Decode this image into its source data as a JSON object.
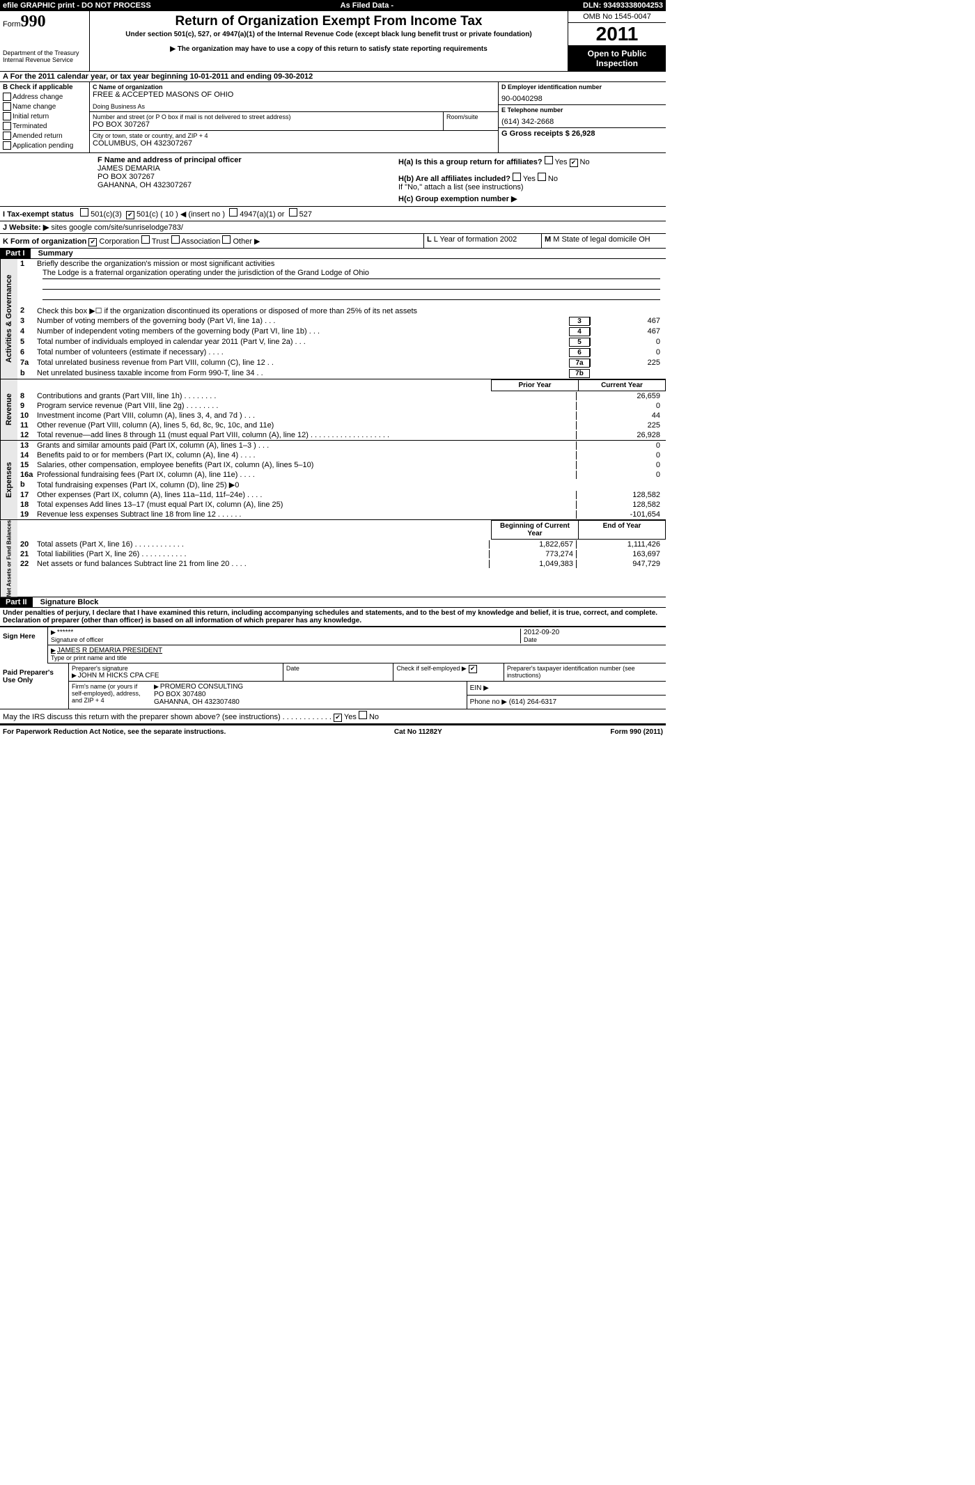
{
  "top": {
    "left": "efile GRAPHIC print - DO NOT PROCESS",
    "mid": "As Filed Data -",
    "right": "DLN: 93493338004253"
  },
  "header": {
    "form_label": "Form",
    "form_no": "990",
    "dept1": "Department of the Treasury",
    "dept2": "Internal Revenue Service",
    "title": "Return of Organization Exempt From Income Tax",
    "sub1": "Under section 501(c), 527, or 4947(a)(1) of the Internal Revenue Code (except black lung benefit trust or private foundation)",
    "sub2": "▶ The organization may have to use a copy of this return to satisfy state reporting requirements",
    "omb": "OMB No 1545-0047",
    "year": "2011",
    "open": "Open to Public Inspection"
  },
  "rowA": "A  For the 2011 calendar year, or tax year beginning 10-01-2011   and ending 09-30-2012",
  "colB": {
    "hdr": "B Check if applicable",
    "items": [
      "Address change",
      "Name change",
      "Initial return",
      "Terminated",
      "Amended return",
      "Application pending"
    ]
  },
  "colC": {
    "name_lbl": "C Name of organization",
    "name": "FREE & ACCEPTED MASONS OF OHIO",
    "dba_lbl": "Doing Business As",
    "street_lbl": "Number and street (or P O  box if mail is not delivered to street address)",
    "room_lbl": "Room/suite",
    "street": "PO BOX 307267",
    "city_lbl": "City or town, state or country, and ZIP + 4",
    "city": "COLUMBUS, OH  432307267"
  },
  "colD": {
    "d_lbl": "D Employer identification number",
    "d_val": "90-0040298",
    "e_lbl": "E Telephone number",
    "e_val": "(614) 342-2668",
    "g_lbl": "G Gross receipts $ 26,928"
  },
  "rowF": {
    "f_lbl": "F  Name and address of principal officer",
    "f_name": "JAMES DEMARIA",
    "f_addr1": "PO BOX 307267",
    "f_addr2": "GAHANNA, OH  432307267"
  },
  "rowH": {
    "ha": "H(a)  Is this a group return for affiliates?",
    "hb": "H(b)  Are all affiliates included?",
    "hb_no": "If \"No,\" attach a list  (see instructions)",
    "hc": "H(c)   Group exemption number ▶"
  },
  "rowI": {
    "label": "I  Tax-exempt status",
    "opts": [
      "501(c)(3)",
      "501(c) ( 10 ) ◀ (insert no )",
      "4947(a)(1) or",
      "527"
    ]
  },
  "rowJ": {
    "label": "J  Website: ▶",
    "val": "sites google com/site/sunriselodge783/"
  },
  "rowK": {
    "k_lbl": "K Form of organization",
    "opts": [
      "Corporation",
      "Trust",
      "Association",
      "Other ▶"
    ],
    "l_lbl": "L Year of formation  2002",
    "m_lbl": "M State of legal domicile  OH"
  },
  "part1": {
    "hdr": "Part I",
    "title": "Summary",
    "l1_lbl": "Briefly describe the organization's mission or most significant activities",
    "l1_val": "The Lodge is a fraternal organization operating under the jurisdiction of the Grand Lodge of Ohio",
    "l2": "Check this box ▶☐ if the organization discontinued its operations or disposed of more than 25% of its net assets",
    "lines_num": [
      {
        "n": "3",
        "t": "Number of voting members of the governing body (Part VI, line 1a)   .   .   .",
        "box": "3",
        "val": "467"
      },
      {
        "n": "4",
        "t": "Number of independent voting members of the governing body (Part VI, line 1b)   .   .   .",
        "box": "4",
        "val": "467"
      },
      {
        "n": "5",
        "t": "Total number of individuals employed in calendar year 2011 (Part V, line 2a)   .   .   .",
        "box": "5",
        "val": "0"
      },
      {
        "n": "6",
        "t": "Total number of volunteers (estimate if necessary)   .   .   .   .",
        "box": "6",
        "val": "0"
      },
      {
        "n": "7a",
        "t": "Total unrelated business revenue from Part VIII, column (C), line 12   .   .",
        "box": "7a",
        "val": "225"
      },
      {
        "n": "b",
        "t": "Net unrelated business taxable income from Form 990-T, line 34   .   .",
        "box": "7b",
        "val": ""
      }
    ],
    "col_hdr": {
      "c1": "Prior Year",
      "c2": "Current Year"
    },
    "revenue": [
      {
        "n": "8",
        "t": "Contributions and grants (Part VIII, line 1h)   .   .   .   .   .   .   .   .",
        "c1": "",
        "c2": "26,659"
      },
      {
        "n": "9",
        "t": "Program service revenue (Part VIII, line 2g)   .   .   .   .   .   .   .   .",
        "c1": "",
        "c2": "0"
      },
      {
        "n": "10",
        "t": "Investment income (Part VIII, column (A), lines 3, 4, and 7d )   .   .   .",
        "c1": "",
        "c2": "44"
      },
      {
        "n": "11",
        "t": "Other revenue (Part VIII, column (A), lines 5, 6d, 8c, 9c, 10c, and 11e)",
        "c1": "",
        "c2": "225"
      },
      {
        "n": "12",
        "t": "Total revenue—add lines 8 through 11 (must equal Part VIII, column (A), line 12) .   .   .   .   .   .   .   .   .   .   .   .   .   .   .   .   .   .   .",
        "c1": "",
        "c2": "26,928"
      }
    ],
    "expenses": [
      {
        "n": "13",
        "t": "Grants and similar amounts paid (Part IX, column (A), lines 1–3 )   .   .   .",
        "c1": "",
        "c2": "0"
      },
      {
        "n": "14",
        "t": "Benefits paid to or for members (Part IX, column (A), line 4)   .   .   .   .",
        "c1": "",
        "c2": "0"
      },
      {
        "n": "15",
        "t": "Salaries, other compensation, employee benefits (Part IX, column (A), lines 5–10)",
        "c1": "",
        "c2": "0"
      },
      {
        "n": "16a",
        "t": "Professional fundraising fees (Part IX, column (A), line 11e)   .   .   .   .",
        "c1": "",
        "c2": "0"
      },
      {
        "n": "b",
        "t": "Total fundraising expenses (Part IX, column (D), line 25) ▶0",
        "c1": "—",
        "c2": "—"
      },
      {
        "n": "17",
        "t": "Other expenses (Part IX, column (A), lines 11a–11d, 11f–24e)   .   .   .   .",
        "c1": "",
        "c2": "128,582"
      },
      {
        "n": "18",
        "t": "Total expenses  Add lines 13–17 (must equal Part IX, column (A), line 25)",
        "c1": "",
        "c2": "128,582"
      },
      {
        "n": "19",
        "t": "Revenue less expenses  Subtract line 18 from line 12   .   .   .   .   .   .",
        "c1": "",
        "c2": "-101,654"
      }
    ],
    "net_hdr": {
      "c1": "Beginning of Current Year",
      "c2": "End of Year"
    },
    "net": [
      {
        "n": "20",
        "t": "Total assets (Part X, line 16)   .   .   .   .   .   .   .   .   .   .   .   .",
        "c1": "1,822,657",
        "c2": "1,111,426"
      },
      {
        "n": "21",
        "t": "Total liabilities (Part X, line 26)   .   .   .   .   .   .   .   .   .   .   .",
        "c1": "773,274",
        "c2": "163,697"
      },
      {
        "n": "22",
        "t": "Net assets or fund balances  Subtract line 21 from line 20   .   .   .   .",
        "c1": "1,049,383",
        "c2": "947,729"
      }
    ]
  },
  "part2": {
    "hdr": "Part II",
    "title": "Signature Block",
    "perjury": "Under penalties of perjury, I declare that I have examined this return, including accompanying schedules and statements, and to the best of my knowledge and belief, it is true, correct, and complete. Declaration of preparer (other than officer) is based on all information of which preparer has any knowledge.",
    "sign_here": "Sign Here",
    "sig_stars": "******",
    "sig_date": "2012-09-20",
    "sig_lbl": "Signature of officer",
    "date_lbl": "Date",
    "officer": "JAMES R DEMARIA PRESIDENT",
    "officer_lbl": "Type or print name and title",
    "paid_lbl": "Paid Preparer's Use Only",
    "prep_sig_lbl": "Preparer's signature",
    "prep_name": "JOHN M HICKS CPA CFE",
    "date_hdr": "Date",
    "self_lbl": "Check if self-employed ▶",
    "ptin_lbl": "Preparer's taxpayer identification number (see instructions)",
    "firm_lbl": "Firm's name (or yours if self-employed), address, and ZIP + 4",
    "firm_name": "PROMERO CONSULTING",
    "firm_addr1": "PO BOX 307480",
    "firm_addr2": "GAHANNA, OH  432307480",
    "ein_lbl": "EIN ▶",
    "phone_lbl": "Phone no  ▶  (614) 264-6317",
    "discuss": "May the IRS discuss this return with the preparer shown above? (see instructions)   .   .   .   .   .   .   .   .   .   .   .   ."
  },
  "footer": {
    "left": "For Paperwork Reduction Act Notice, see the separate instructions.",
    "mid": "Cat No  11282Y",
    "right": "Form 990 (2011)"
  }
}
